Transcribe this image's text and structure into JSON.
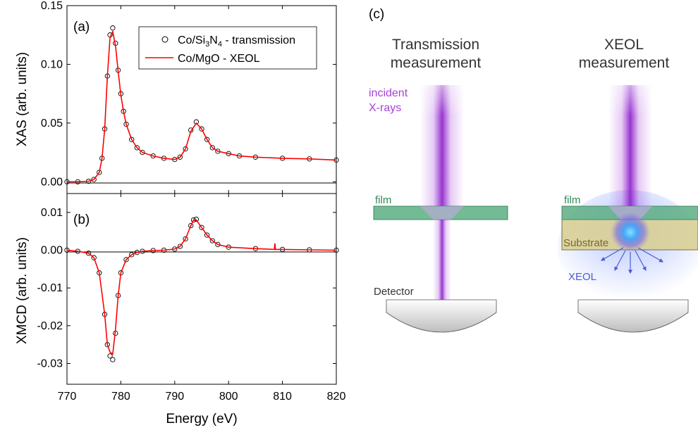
{
  "panels": {
    "a_label": "(a)",
    "b_label": "(b)",
    "c_label": "(c)"
  },
  "legend": {
    "transmission": [
      "Co/Si",
      "3",
      "N",
      "4",
      " - transmission"
    ],
    "xeol": "Co/MgO - XEOL"
  },
  "diagram": {
    "left_title_1": "Transmission",
    "left_title_2": "measurement",
    "right_title_1": "XEOL",
    "right_title_2": "measurement",
    "incident_1": "incident",
    "incident_2": "X-rays",
    "film_left": "film",
    "film_right": "film",
    "substrate": "Substrate",
    "xeol": "XEOL",
    "detector": "Detector",
    "colors": {
      "xray": "#9b30d6",
      "film": "#5cae83",
      "substrate": "#d9cf96",
      "glow": "#3aa0ff",
      "xeol_text": "#4a5bd8",
      "detector": "#c8c8c8"
    }
  },
  "chart_data": [
    {
      "type": "scatter",
      "panel": "(a)",
      "ylabel": "XAS (arb. units)",
      "xlabel": "",
      "xlim": [
        770,
        820
      ],
      "ylim": [
        -0.01,
        0.15
      ],
      "xticks": [
        770,
        780,
        790,
        800,
        810,
        820
      ],
      "yticks": [
        "0.00",
        "0.05",
        "0.10",
        "0.15"
      ],
      "ytick_values": [
        0.0,
        0.05,
        0.1,
        0.15
      ],
      "series": [
        {
          "name": "Co/Si3N4 - transmission",
          "style": "open-circle",
          "color": "#000000",
          "x": [
            770,
            772,
            774,
            775,
            776,
            776.5,
            777,
            777.5,
            778,
            778.5,
            779,
            779.5,
            780,
            780.5,
            781,
            782,
            783,
            784,
            786,
            788,
            790,
            791,
            792,
            793,
            794,
            795,
            796,
            797,
            798,
            800,
            802,
            805,
            810,
            815,
            820
          ],
          "y": [
            0.0,
            0.0,
            0.0005,
            0.002,
            0.008,
            0.02,
            0.045,
            0.09,
            0.125,
            0.131,
            0.118,
            0.095,
            0.075,
            0.06,
            0.049,
            0.036,
            0.029,
            0.025,
            0.022,
            0.02,
            0.019,
            0.021,
            0.028,
            0.044,
            0.051,
            0.045,
            0.036,
            0.029,
            0.026,
            0.024,
            0.022,
            0.021,
            0.02,
            0.0195,
            0.0185
          ]
        },
        {
          "name": "Co/MgO - XEOL",
          "style": "line",
          "color": "#ff0000",
          "x": [
            770,
            772,
            774,
            775,
            776,
            776.5,
            777,
            777.5,
            778,
            778.5,
            779,
            779.5,
            780,
            780.5,
            781,
            782,
            783,
            784,
            786,
            788,
            790,
            791,
            792,
            793,
            794,
            795,
            796,
            797,
            798,
            800,
            802,
            805,
            810,
            815,
            820
          ],
          "y": [
            0.0,
            0.0,
            0.0005,
            0.002,
            0.008,
            0.02,
            0.045,
            0.09,
            0.123,
            0.128,
            0.116,
            0.094,
            0.074,
            0.06,
            0.049,
            0.036,
            0.029,
            0.025,
            0.022,
            0.02,
            0.019,
            0.021,
            0.028,
            0.043,
            0.05,
            0.045,
            0.036,
            0.029,
            0.026,
            0.024,
            0.022,
            0.021,
            0.02,
            0.0195,
            0.0185
          ]
        }
      ]
    },
    {
      "type": "scatter",
      "panel": "(b)",
      "ylabel": "XMCD (arb. units)",
      "xlabel": "Energy (eV)",
      "xlim": [
        770,
        820
      ],
      "ylim": [
        -0.0355,
        0.015
      ],
      "xticks": [
        770,
        780,
        790,
        800,
        810,
        820
      ],
      "yticks": [
        "0.01",
        "0.00",
        "-0.01",
        "-0.02",
        "-0.03"
      ],
      "ytick_values": [
        0.01,
        0.0,
        -0.01,
        -0.02,
        -0.03
      ],
      "series": [
        {
          "name": "Co/Si3N4 - transmission",
          "style": "open-circle",
          "color": "#000000",
          "x": [
            770,
            772,
            774,
            775,
            776,
            777,
            777.5,
            778,
            778.5,
            779,
            779.5,
            780,
            781,
            782,
            783,
            784,
            786,
            788,
            790,
            791,
            792,
            793,
            793.5,
            794,
            795,
            796,
            797,
            798,
            800,
            805,
            810,
            815,
            820
          ],
          "y": [
            0.0,
            -0.0003,
            -0.0008,
            -0.002,
            -0.006,
            -0.017,
            -0.025,
            -0.028,
            -0.029,
            -0.022,
            -0.012,
            -0.006,
            -0.0025,
            -0.0012,
            -0.0006,
            -0.0003,
            -0.0001,
            0.0,
            0.0003,
            0.001,
            0.003,
            0.0065,
            0.008,
            0.0082,
            0.006,
            0.004,
            0.0025,
            0.0015,
            0.0008,
            0.0004,
            0.0002,
            0.0001,
            0.0
          ]
        },
        {
          "name": "Co/MgO - XEOL",
          "style": "line",
          "color": "#ff0000",
          "x": [
            770,
            772,
            774,
            775,
            776,
            777,
            777.5,
            778,
            778.5,
            779,
            779.5,
            780,
            781,
            782,
            783,
            784,
            786,
            788,
            790,
            791,
            792,
            793,
            793.5,
            794,
            795,
            796,
            797,
            798,
            800,
            805,
            808.5,
            808.6,
            808.7,
            810,
            815,
            820
          ],
          "y": [
            0.0,
            -0.0003,
            -0.0008,
            -0.002,
            -0.006,
            -0.017,
            -0.025,
            -0.027,
            -0.0275,
            -0.021,
            -0.012,
            -0.006,
            -0.0025,
            -0.0012,
            -0.0006,
            -0.0003,
            -0.0001,
            0.0,
            0.0003,
            0.001,
            0.003,
            0.0065,
            0.008,
            0.008,
            0.006,
            0.004,
            0.0025,
            0.0015,
            0.0008,
            0.0004,
            0.0002,
            0.0018,
            0.0002,
            0.0002,
            0.0001,
            0.0
          ]
        }
      ]
    }
  ]
}
